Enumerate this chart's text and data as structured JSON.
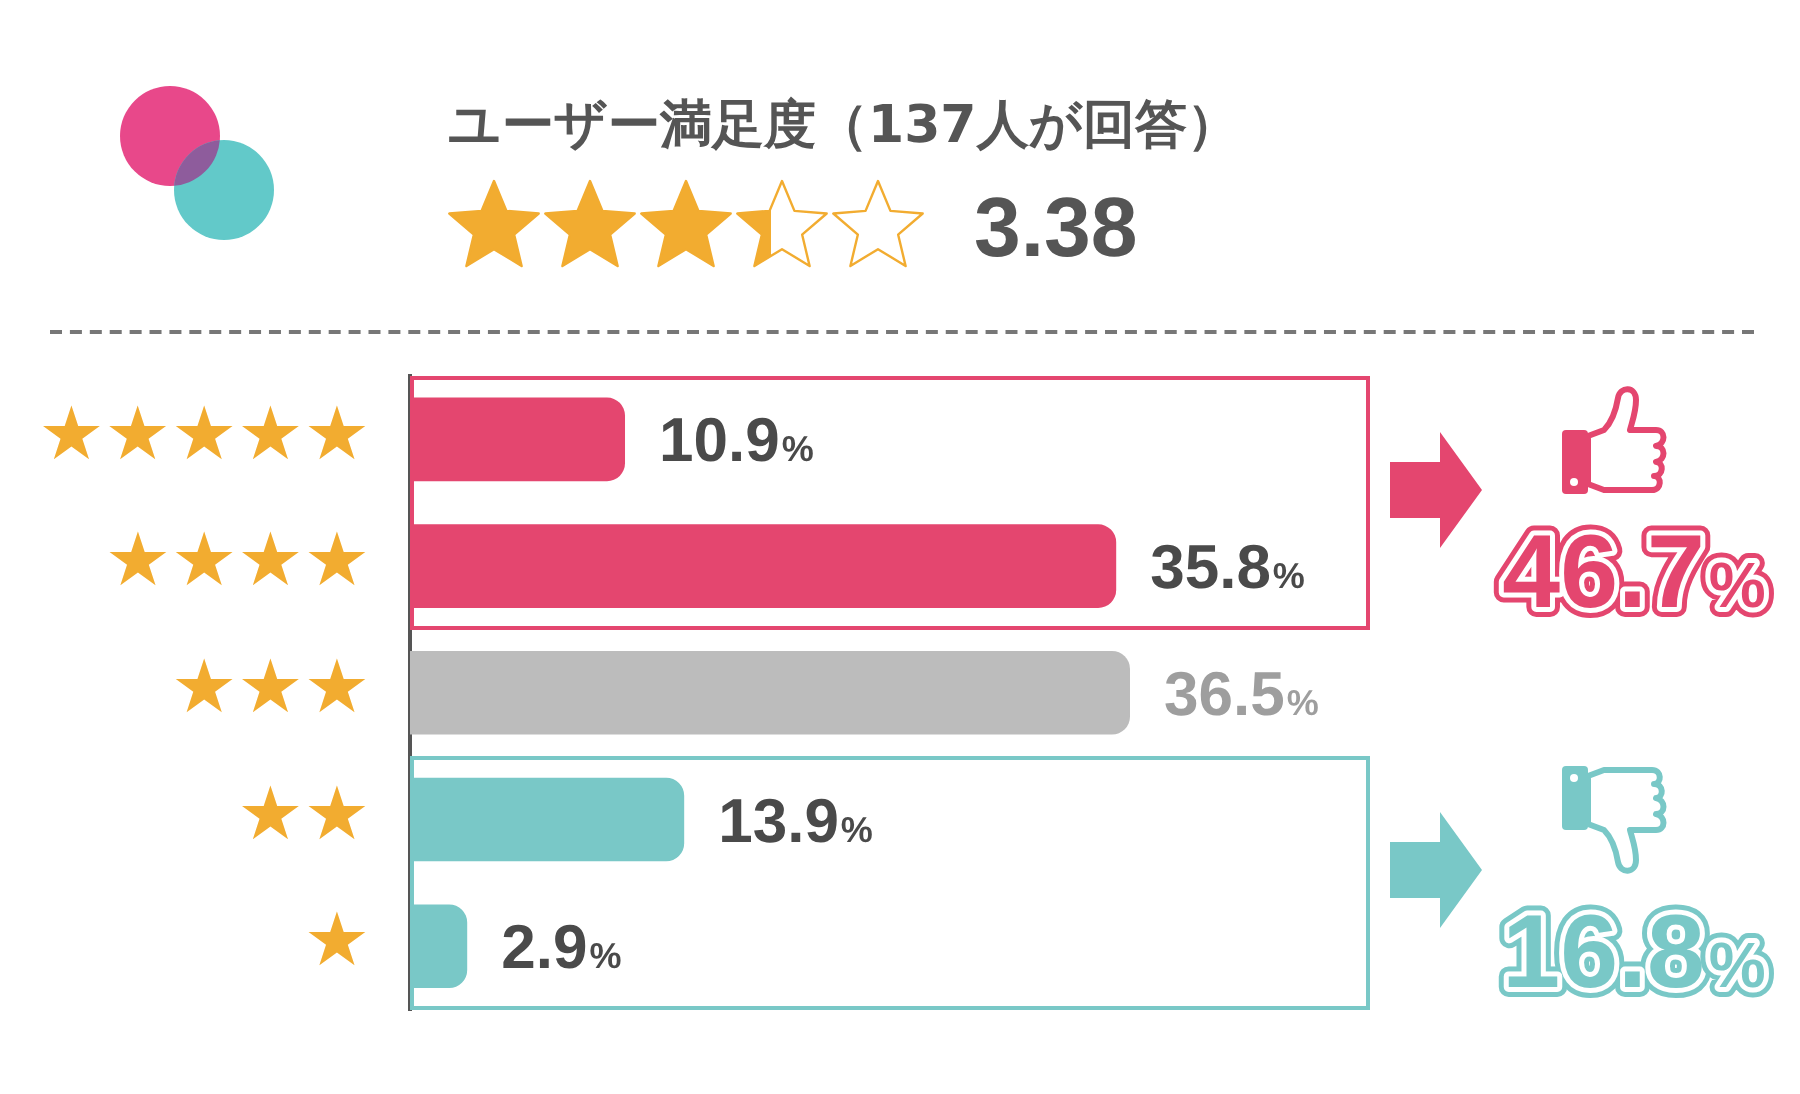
{
  "chart_data": {
    "type": "bar",
    "orientation": "horizontal",
    "title": "ユーザー満足度（137人が回答）",
    "subtitle": "3.38",
    "categories": [
      "★★★★★",
      "★★★★",
      "★★★",
      "★★",
      "★"
    ],
    "values": [
      10.9,
      35.8,
      36.5,
      13.9,
      2.9
    ],
    "colors": [
      "#e4466f",
      "#e4466f",
      "#bcbcbc",
      "#79c8c7",
      "#79c8c7"
    ],
    "value_labels": [
      "10.9%",
      "35.8%",
      "36.5%",
      "13.9%",
      "2.9%"
    ],
    "annotations": [
      "46.7%",
      "16.8%"
    ],
    "tick_labels": "y"
  }
}
